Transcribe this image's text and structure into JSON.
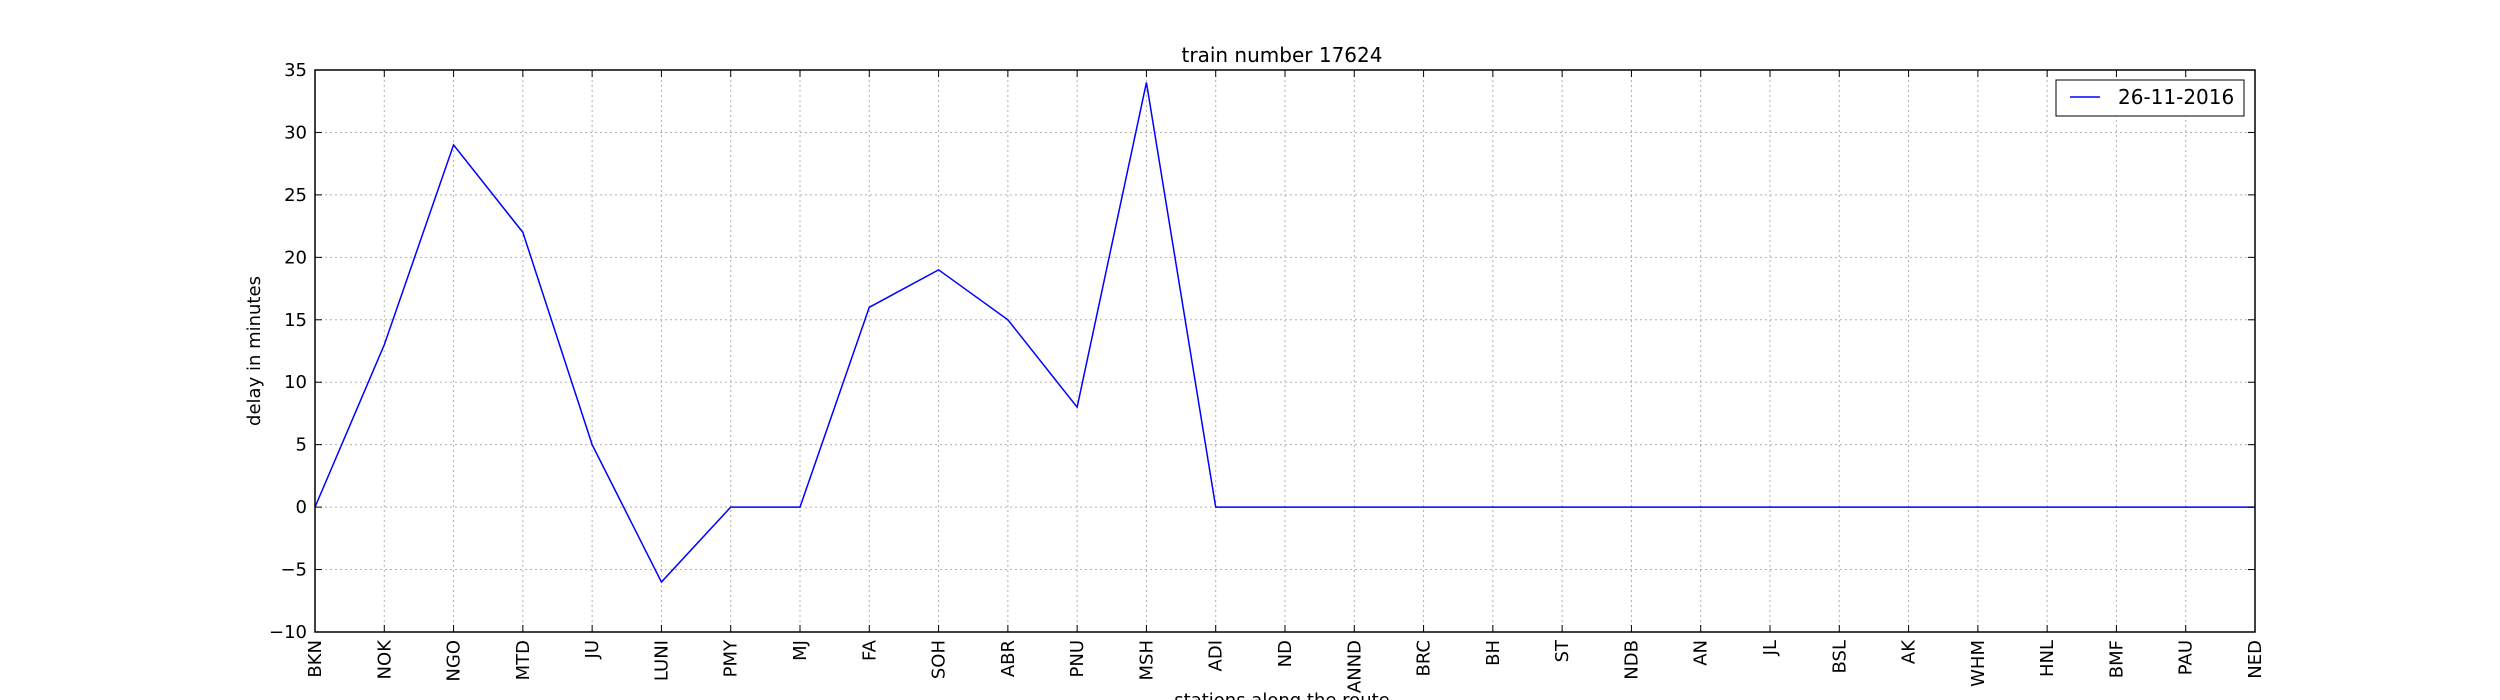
{
  "chart_data": {
    "type": "line",
    "title": "train number 17624",
    "xlabel": "stations along the route",
    "ylabel": "delay in minutes",
    "categories": [
      "BKN",
      "NOK",
      "NGO",
      "MTD",
      "JU",
      "LUNI",
      "PMY",
      "MJ",
      "FA",
      "SOH",
      "ABR",
      "PNU",
      "MSH",
      "ADI",
      "ND",
      "ANND",
      "BRC",
      "BH",
      "ST",
      "NDB",
      "AN",
      "JL",
      "BSL",
      "AK",
      "WHM",
      "HNL",
      "BMF",
      "PAU",
      "NED"
    ],
    "series": [
      {
        "name": "26-11-2016",
        "color": "#0000ff",
        "values": [
          0,
          13,
          29,
          22,
          5,
          -6,
          0,
          0,
          16,
          19,
          15,
          8,
          34,
          0,
          0,
          0,
          0,
          0,
          0,
          0,
          0,
          0,
          0,
          0,
          0,
          0,
          0,
          0,
          0
        ]
      }
    ],
    "ylim": [
      -10,
      35
    ],
    "yticks": [
      -10,
      -5,
      0,
      5,
      10,
      15,
      20,
      25,
      30,
      35
    ],
    "ytick_labels": [
      "−10",
      "−5",
      "0",
      "5",
      "10",
      "15",
      "20",
      "25",
      "30",
      "35"
    ],
    "grid": true,
    "legend_position": "top-right"
  }
}
